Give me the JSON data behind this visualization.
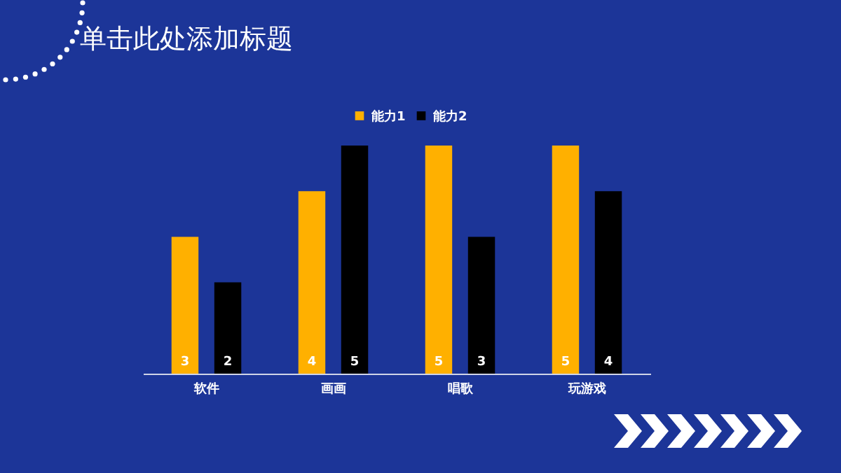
{
  "chart_data": {
    "type": "bar",
    "title": "单击此处添加标题",
    "categories": [
      "软件",
      "画画",
      "唱歌",
      "玩游戏"
    ],
    "series": [
      {
        "name": "能力1",
        "color": "#ffb000",
        "values": [
          3,
          4,
          5,
          5
        ]
      },
      {
        "name": "能力2",
        "color": "#000000",
        "values": [
          2,
          5,
          3,
          4
        ]
      }
    ],
    "data_labels": true,
    "legend": "top",
    "grid": false
  }
}
